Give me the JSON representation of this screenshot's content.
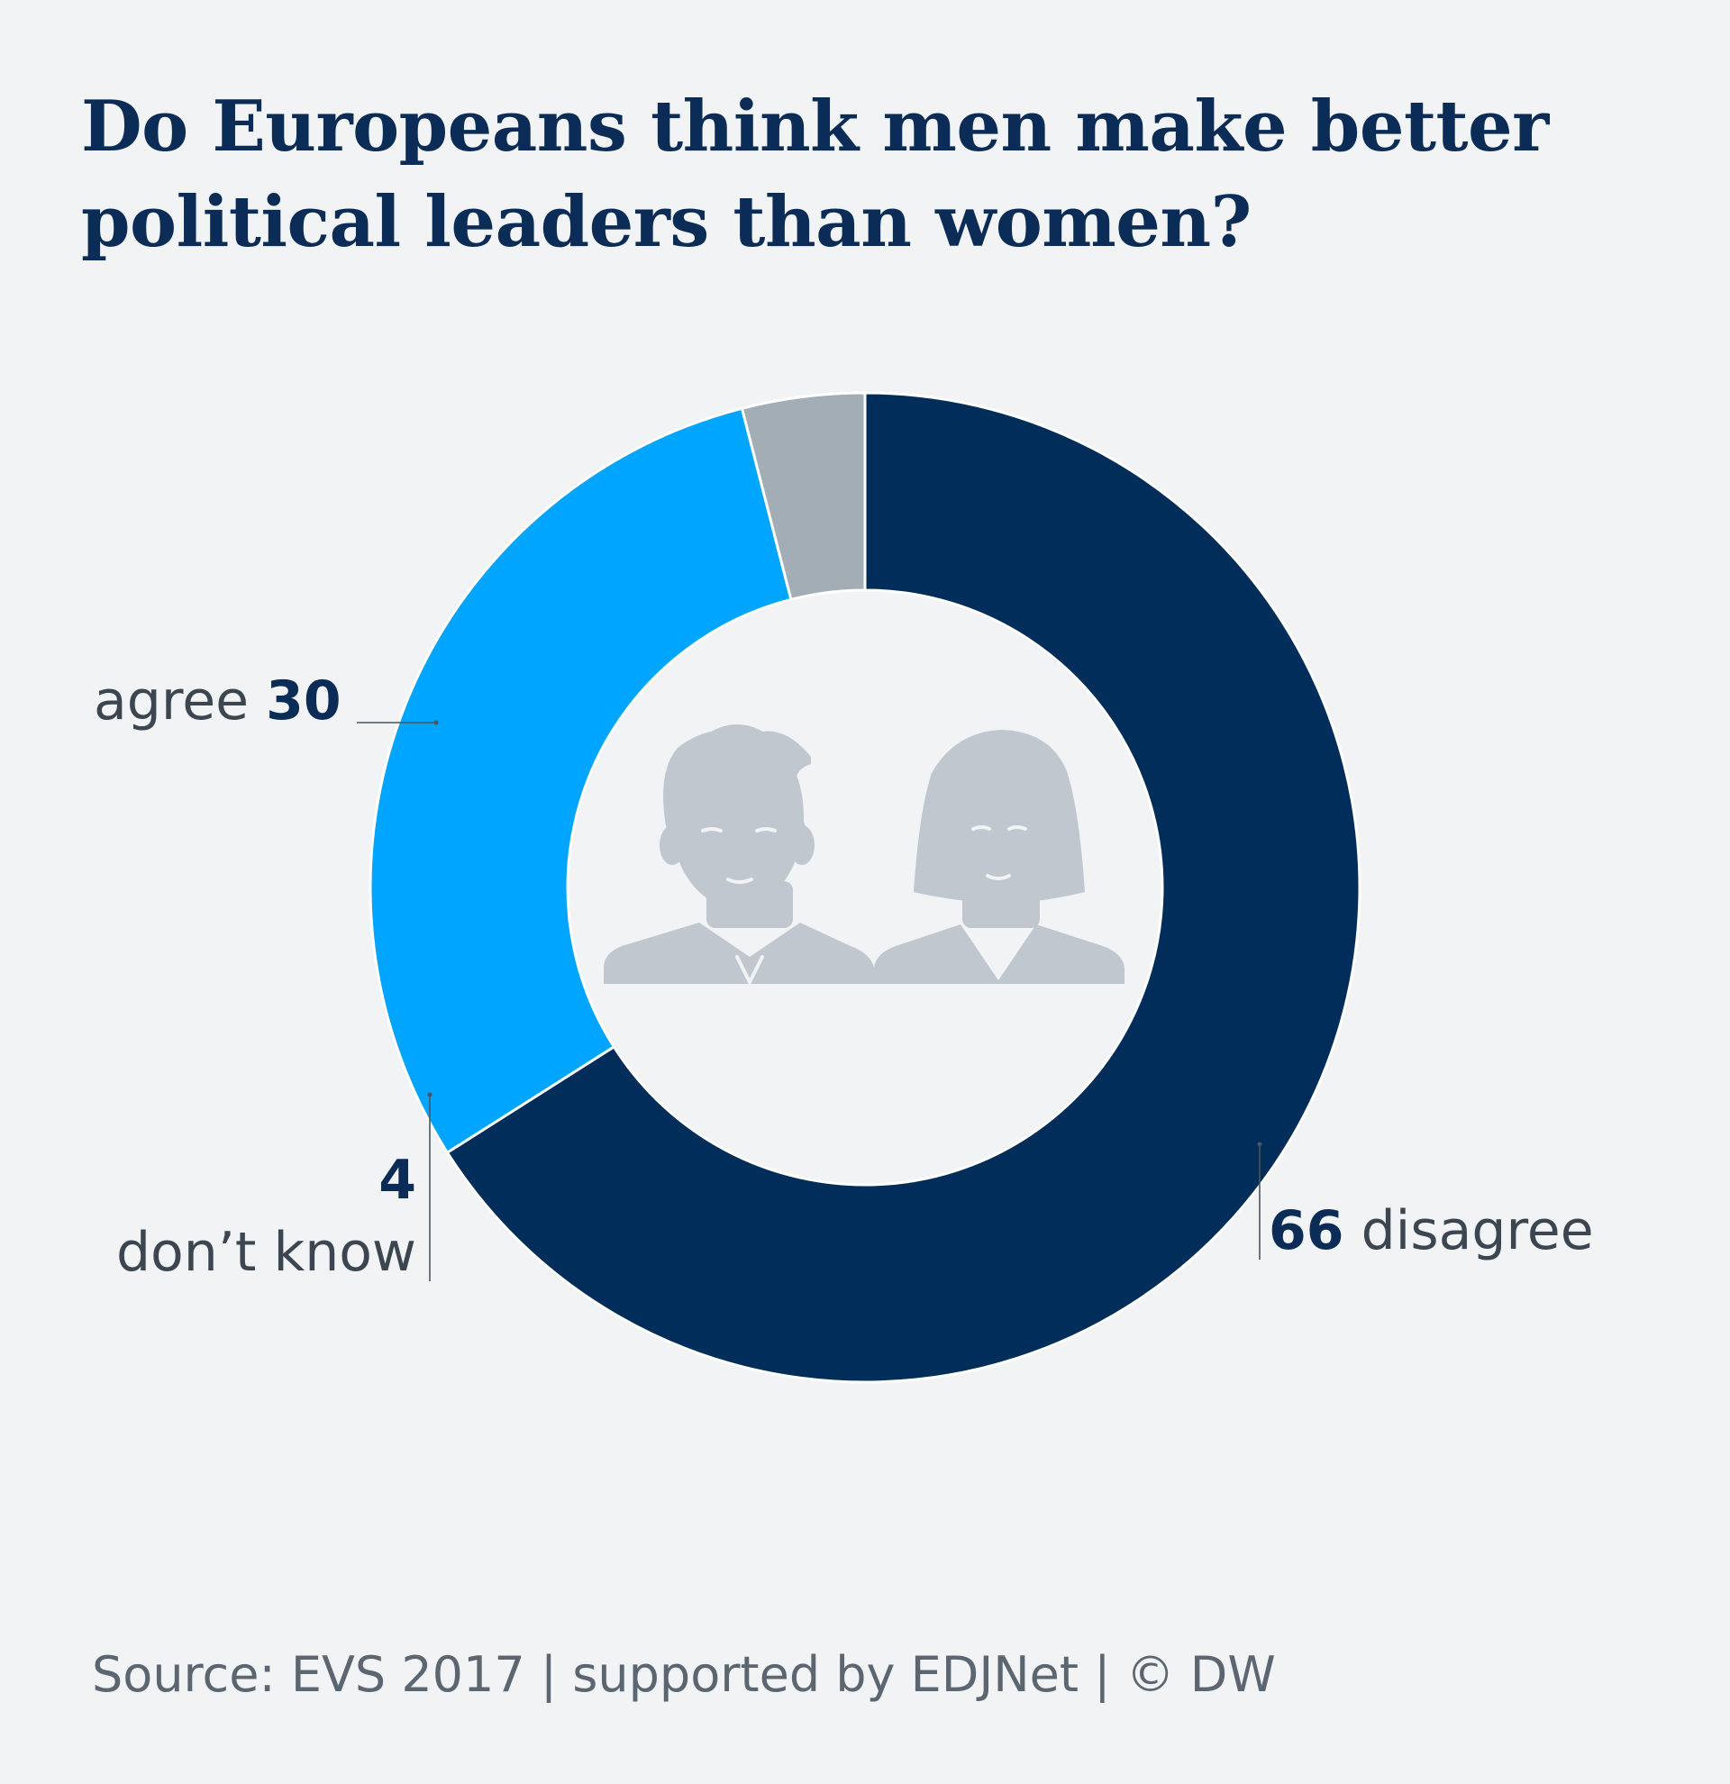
{
  "chart_data": {
    "type": "pie",
    "title": "Do Europeans think men make better political leaders than women?",
    "labels": [
      "disagree",
      "agree",
      "don’t know"
    ],
    "values": [
      66,
      30,
      4
    ],
    "colors": [
      "#002d5a",
      "#00a5ff",
      "#a3adb6"
    ],
    "donut": true,
    "center_icon": "man-and-woman-icon",
    "legend": "none"
  },
  "footer": {
    "source": "Source: EVS 2017 | supported by EDJNet | © DW"
  },
  "colors": {
    "background": "#f1f3f5",
    "title": "#0a2c56",
    "text": "#3b4650",
    "icon": "#c0c7cf"
  }
}
